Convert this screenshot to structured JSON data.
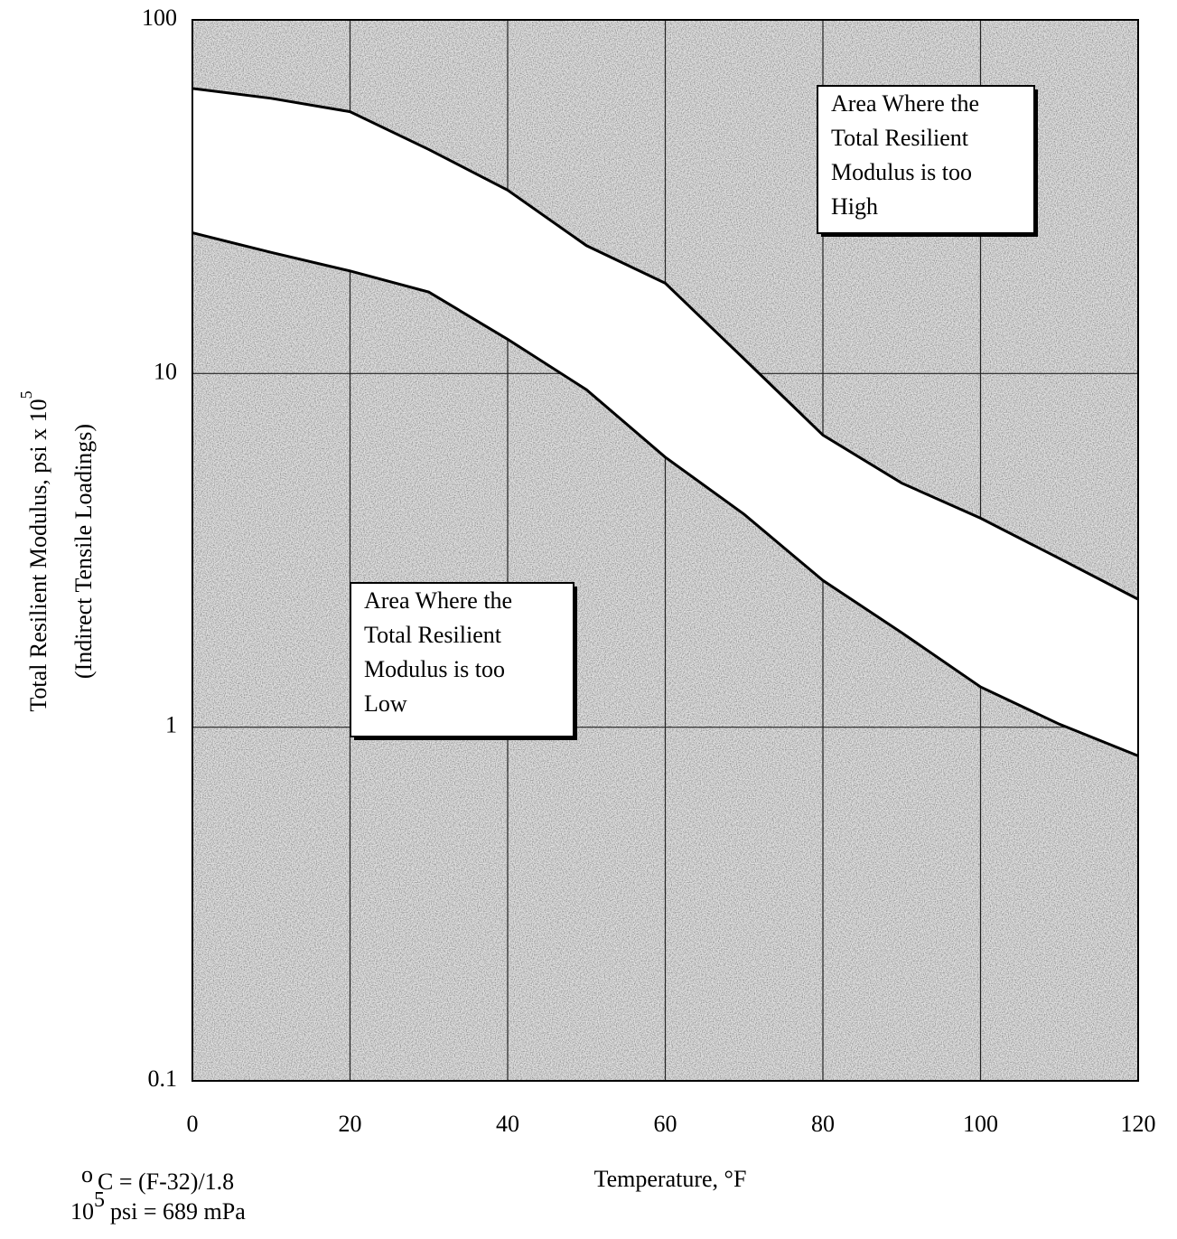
{
  "chart_data": {
    "type": "line",
    "x_label": "Temperature, °F",
    "y_label_lines": [
      "Total Resilient Modulus, psi x 10",
      "(Indirect Tensile Loadings)"
    ],
    "y_label_exponent": "5",
    "x": [
      0,
      10,
      20,
      30,
      40,
      50,
      60,
      70,
      80,
      90,
      100,
      110,
      120
    ],
    "series": [
      {
        "color": "#000000",
        "values": [
          64,
          60,
          55,
          43,
          33,
          23,
          18,
          11,
          6.7,
          4.9,
          3.9,
          3.0,
          2.3
        ]
      },
      {
        "color": "#000000",
        "values": [
          25,
          22,
          19.5,
          17,
          12.5,
          9,
          5.8,
          4,
          2.6,
          1.85,
          1.3,
          1.02,
          0.83
        ]
      }
    ],
    "band_fill": "#ffffff",
    "xlim": [
      0,
      120
    ],
    "xticks": [
      0,
      20,
      40,
      60,
      80,
      100,
      120
    ],
    "ylim": [
      0.1,
      100
    ],
    "yticks": [
      0.1,
      1,
      10,
      100
    ],
    "y_log_scale": true,
    "grid": true,
    "annotations": [
      {
        "lines": [
          "Area Where the",
          "Total Resilient",
          "Modulus is too",
          "High"
        ]
      },
      {
        "lines": [
          "Area Where the",
          "Total Resilient",
          "Modulus is too",
          "Low"
        ]
      }
    ],
    "footnote_1_degree": "o",
    "footnote_1": "C = (F-32)/1.8",
    "footnote_2_base": "10",
    "footnote_2_exponent": "5",
    "footnote_2": "psi = 689 mPa"
  }
}
